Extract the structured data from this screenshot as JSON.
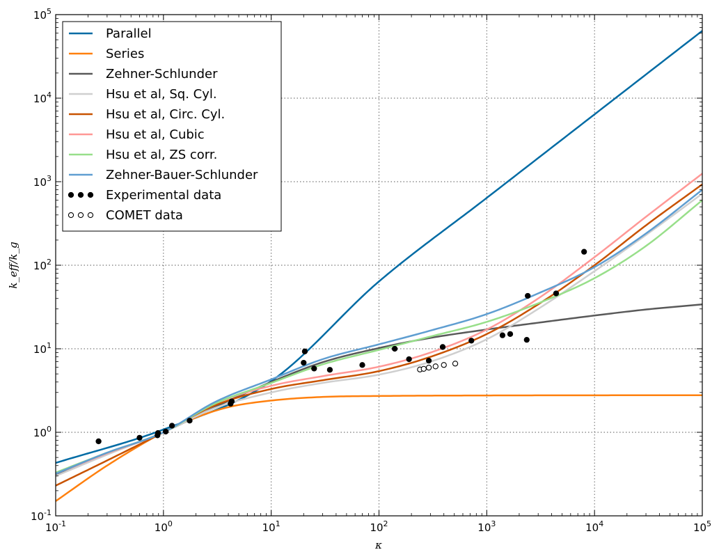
{
  "chart_data": {
    "type": "line",
    "xscale": "log",
    "yscale": "log",
    "xlim": [
      0.1,
      100000
    ],
    "ylim": [
      0.1,
      100000
    ],
    "xlabel": "κ",
    "ylabel": "k_eff/k_g",
    "grid": true,
    "legend_position": "top-left",
    "x_ticks": [
      {
        "base": "10",
        "exp": "-1",
        "value": 0.1
      },
      {
        "base": "10",
        "exp": "0",
        "value": 1
      },
      {
        "base": "10",
        "exp": "1",
        "value": 10
      },
      {
        "base": "10",
        "exp": "2",
        "value": 100
      },
      {
        "base": "10",
        "exp": "3",
        "value": 1000
      },
      {
        "base": "10",
        "exp": "4",
        "value": 10000
      },
      {
        "base": "10",
        "exp": "5",
        "value": 100000
      }
    ],
    "y_ticks": [
      {
        "base": "10",
        "exp": "-1",
        "value": 0.1
      },
      {
        "base": "10",
        "exp": "0",
        "value": 1
      },
      {
        "base": "10",
        "exp": "1",
        "value": 10
      },
      {
        "base": "10",
        "exp": "2",
        "value": 100
      },
      {
        "base": "10",
        "exp": "3",
        "value": 1000
      },
      {
        "base": "10",
        "exp": "4",
        "value": 10000
      },
      {
        "base": "10",
        "exp": "5",
        "value": 100000
      }
    ],
    "series": [
      {
        "name": "Parallel",
        "color": "#006ba4",
        "x": [
          0.1,
          1,
          10,
          100,
          1000,
          10000,
          100000
        ],
        "y": [
          0.43,
          1.08,
          4.1,
          64,
          640,
          6400,
          64000
        ]
      },
      {
        "name": "Series",
        "color": "#ff800e",
        "x": [
          0.1,
          0.3,
          1,
          2,
          4,
          10,
          30,
          100,
          1000,
          100000
        ],
        "y": [
          0.15,
          0.4,
          1.0,
          1.5,
          2.0,
          2.4,
          2.65,
          2.72,
          2.76,
          2.78
        ]
      },
      {
        "name": "Zehner-Schlunder",
        "color": "#595959",
        "x": [
          0.1,
          0.3,
          1,
          3,
          10,
          30,
          100,
          300,
          1000,
          3000,
          10000,
          30000,
          100000
        ],
        "y": [
          0.31,
          0.55,
          1.0,
          2.0,
          4.0,
          6.9,
          10.2,
          13.5,
          17.0,
          20.5,
          25,
          29.5,
          34
        ]
      },
      {
        "name": "Hsu et al, Sq. Cyl.",
        "color": "#cfcfcf",
        "x": [
          0.1,
          0.3,
          1,
          3,
          10,
          30,
          100,
          300,
          1000,
          3000,
          10000,
          30000,
          100000
        ],
        "y": [
          0.3,
          0.54,
          1.0,
          1.95,
          3.0,
          3.9,
          4.9,
          7.0,
          13,
          30,
          85,
          230,
          720
        ]
      },
      {
        "name": "Hsu et al, Circ. Cyl.",
        "color": "#c85200",
        "x": [
          0.1,
          0.3,
          1,
          3,
          10,
          30,
          100,
          300,
          1000,
          3000,
          10000,
          30000,
          100000
        ],
        "y": [
          0.23,
          0.46,
          1.0,
          2.1,
          3.3,
          4.2,
          5.4,
          8.0,
          15,
          34,
          100,
          300,
          930
        ]
      },
      {
        "name": "Hsu et al, Cubic",
        "color": "#ff9896",
        "x": [
          0.1,
          0.3,
          1,
          3,
          10,
          30,
          100,
          300,
          1000,
          3000,
          10000,
          30000,
          100000
        ],
        "y": [
          0.32,
          0.56,
          1.0,
          2.2,
          3.6,
          4.7,
          6.1,
          9.0,
          17,
          40,
          125,
          380,
          1250
        ]
      },
      {
        "name": "Hsu et al, ZS corr.",
        "color": "#98df8a",
        "x": [
          0.1,
          0.3,
          1,
          3,
          10,
          30,
          100,
          300,
          1000,
          3000,
          10000,
          30000,
          100000
        ],
        "y": [
          0.33,
          0.57,
          1.0,
          2.2,
          3.9,
          6.5,
          9.7,
          14,
          21,
          35,
          70,
          170,
          600
        ]
      },
      {
        "name": "Zehner-Bauer-Schlunder",
        "color": "#5f9ed1",
        "x": [
          0.1,
          0.3,
          1,
          3,
          10,
          30,
          100,
          300,
          1000,
          3000,
          10000,
          30000,
          100000
        ],
        "y": [
          0.32,
          0.57,
          1.0,
          2.3,
          4.3,
          7.5,
          11.3,
          16.5,
          26,
          46,
          95,
          240,
          800
        ]
      },
      {
        "name": "Experimental data",
        "type": "scatter",
        "marker": "filled",
        "color": "#000000",
        "x": [
          0.25,
          0.6,
          0.88,
          0.89,
          1.05,
          1.2,
          1.75,
          4.2,
          4.3,
          20,
          20.5,
          25,
          35,
          70,
          140,
          190,
          290,
          390,
          720,
          1400,
          1650,
          2350,
          2400,
          4400,
          8000
        ],
        "y": [
          0.78,
          0.86,
          0.92,
          0.98,
          1.02,
          1.2,
          1.38,
          2.2,
          2.35,
          6.8,
          9.3,
          5.8,
          5.6,
          6.4,
          10,
          7.5,
          7.2,
          10.5,
          12.5,
          14.5,
          15,
          12.8,
          43,
          46,
          145
        ]
      },
      {
        "name": "COMET data",
        "type": "scatter",
        "marker": "open",
        "color": "#000000",
        "x": [
          240,
          260,
          290,
          335,
          400,
          510
        ],
        "y": [
          5.65,
          5.75,
          5.95,
          6.15,
          6.4,
          6.65
        ]
      }
    ]
  }
}
